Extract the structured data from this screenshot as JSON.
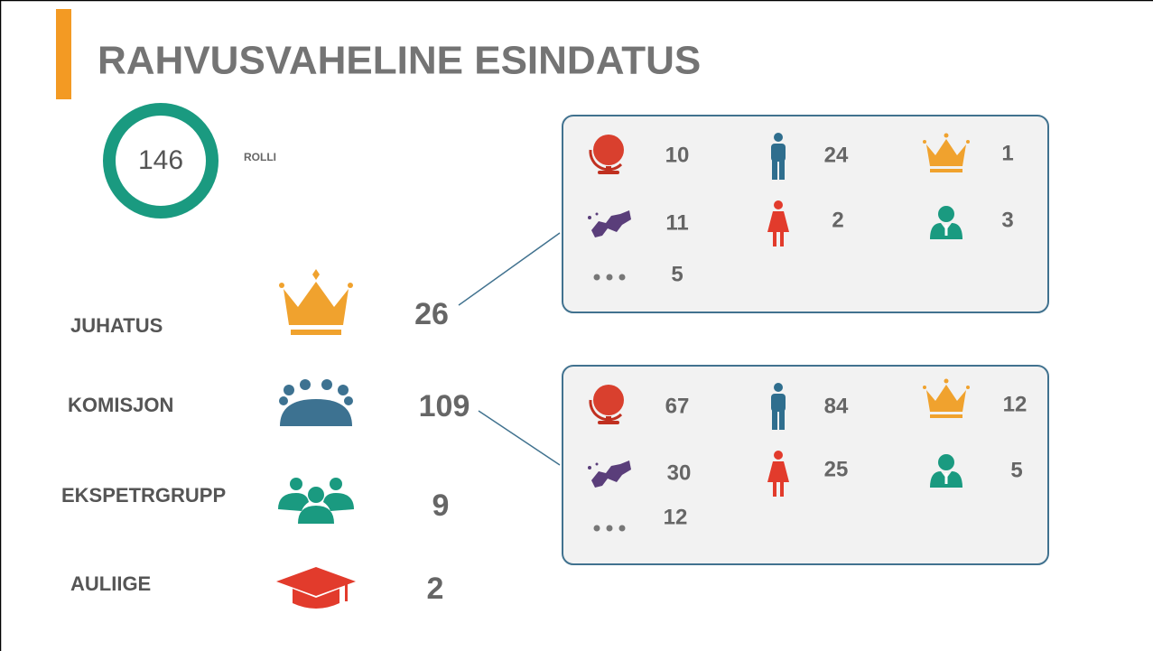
{
  "title": "RAHVUSVAHELINE ESINDATUS",
  "total": {
    "value": 146,
    "label": "ROLLI"
  },
  "roles": [
    {
      "label": "JUHATUS",
      "count": 26
    },
    {
      "label": "KOMISJON",
      "count": 109
    },
    {
      "label": "EKSPETRGRUPP",
      "count": 9
    },
    {
      "label": "AULIIGE",
      "count": 2
    }
  ],
  "details": [
    {
      "items": [
        10,
        24,
        1,
        11,
        2,
        3,
        5
      ]
    },
    {
      "items": [
        67,
        84,
        12,
        30,
        25,
        5,
        12
      ]
    }
  ]
}
